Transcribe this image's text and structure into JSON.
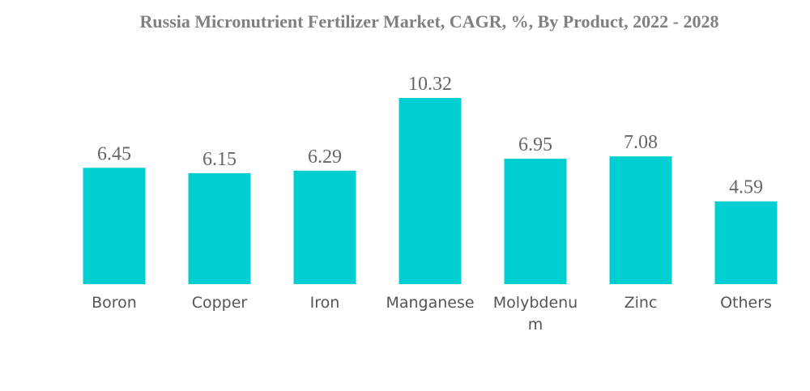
{
  "chart_data": {
    "type": "bar",
    "title": "Russia Micronutrient Fertilizer Market, CAGR, %, By Product, 2022 - 2028",
    "xlabel": "",
    "ylabel": "",
    "categories": [
      "Boron",
      "Copper",
      "Iron",
      "Manganese",
      "Molybdenum",
      "Zinc",
      "Others"
    ],
    "category_label_lines": [
      [
        "Boron"
      ],
      [
        "Copper"
      ],
      [
        "Iron"
      ],
      [
        "Manganese"
      ],
      [
        "Molybdenu",
        "m"
      ],
      [
        "Zinc"
      ],
      [
        "Others"
      ]
    ],
    "values": [
      6.45,
      6.15,
      6.29,
      10.32,
      6.95,
      7.08,
      4.59
    ],
    "value_labels": [
      "6.45",
      "6.15",
      "6.29",
      "10.32",
      "6.95",
      "7.08",
      "4.59"
    ],
    "ylim": [
      0,
      10.32
    ],
    "grid": false,
    "bar_color": "#00CED1"
  }
}
